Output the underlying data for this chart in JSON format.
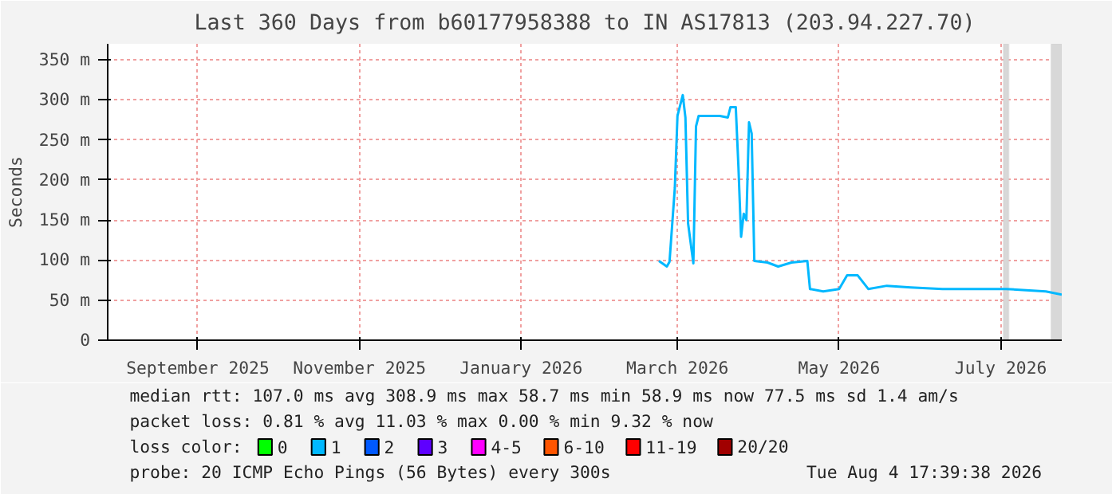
{
  "chart_data": {
    "type": "line",
    "title": "Last 360 Days from b60177958388 to IN AS17813 (203.94.227.70)",
    "ylabel": "Seconds",
    "x": [
      "2026-03-05",
      "2026-03-08",
      "2026-03-09",
      "2026-03-11",
      "2026-03-12",
      "2026-03-14",
      "2026-03-15",
      "2026-03-16",
      "2026-03-18",
      "2026-03-19",
      "2026-03-20",
      "2026-03-28",
      "2026-03-31",
      "2026-04-01",
      "2026-04-03",
      "2026-04-04",
      "2026-04-05",
      "2026-04-06",
      "2026-04-07",
      "2026-04-08",
      "2026-04-09",
      "2026-04-10",
      "2026-04-15",
      "2026-04-19",
      "2026-04-24",
      "2026-04-30",
      "2026-05-01",
      "2026-05-06",
      "2026-05-12",
      "2026-05-15",
      "2026-05-19",
      "2026-05-23",
      "2026-05-30",
      "2026-06-08",
      "2026-06-20",
      "2026-06-26",
      "2026-07-14",
      "2026-07-29",
      "2026-08-04"
    ],
    "series": [
      {
        "name": "0",
        "color": "#00ff00",
        "values": [
          null,
          null,
          null,
          null,
          null,
          null,
          null,
          null,
          null,
          null,
          null,
          null,
          null,
          null,
          null,
          null,
          null,
          null,
          null,
          null,
          null,
          null,
          null,
          null,
          null,
          null,
          null,
          null,
          null,
          null,
          null,
          null,
          null,
          null,
          null,
          null,
          null,
          null,
          null
        ]
      },
      {
        "name": "1",
        "color": "#00b8ff",
        "values": [
          99,
          92,
          98,
          190,
          280,
          306,
          278,
          146,
          96,
          267,
          280,
          280,
          278,
          291,
          291,
          217,
          129,
          158,
          150,
          272,
          258,
          99,
          97,
          92,
          97,
          99,
          64,
          61,
          64,
          81,
          81,
          64,
          68,
          66,
          64,
          64,
          64,
          61,
          57
        ]
      },
      {
        "name": "2",
        "color": "#0059ff",
        "values": [
          null,
          null,
          null,
          null,
          null,
          null,
          null,
          null,
          null,
          null,
          null,
          null,
          null,
          null,
          null,
          null,
          null,
          null,
          null,
          null,
          null,
          null,
          null,
          null,
          null,
          null,
          null,
          null,
          null,
          null,
          null,
          null,
          null,
          null,
          null,
          null,
          null,
          null,
          null
        ]
      },
      {
        "name": "3",
        "color": "#5e00ff",
        "values": [
          null,
          null,
          null,
          null,
          null,
          null,
          null,
          null,
          null,
          null,
          null,
          null,
          null,
          null,
          null,
          null,
          null,
          null,
          null,
          null,
          null,
          null,
          null,
          null,
          null,
          null,
          null,
          null,
          null,
          null,
          null,
          null,
          null,
          null,
          null,
          null,
          null,
          null,
          null
        ]
      },
      {
        "name": "4-5",
        "color": "#ff00ff",
        "values": [
          null,
          null,
          null,
          null,
          null,
          null,
          null,
          null,
          null,
          null,
          null,
          null,
          null,
          null,
          null,
          null,
          null,
          null,
          null,
          null,
          null,
          null,
          null,
          null,
          null,
          null,
          null,
          null,
          null,
          null,
          null,
          null,
          null,
          null,
          null,
          null,
          null,
          null,
          null
        ]
      },
      {
        "name": "6-10",
        "color": "#ff5500",
        "values": [
          null,
          null,
          null,
          null,
          null,
          null,
          null,
          null,
          null,
          null,
          null,
          null,
          null,
          null,
          null,
          null,
          null,
          null,
          null,
          null,
          null,
          null,
          null,
          null,
          null,
          null,
          null,
          null,
          null,
          null,
          null,
          null,
          null,
          null,
          null,
          null,
          null,
          null,
          null
        ]
      },
      {
        "name": "11-19",
        "color": "#ff0000",
        "values": [
          null,
          null,
          null,
          null,
          null,
          null,
          null,
          null,
          null,
          null,
          null,
          null,
          null,
          null,
          null,
          null,
          null,
          null,
          null,
          null,
          null,
          null,
          null,
          null,
          null,
          null,
          null,
          null,
          null,
          null,
          null,
          null,
          null,
          null,
          null,
          null,
          null,
          null,
          null
        ]
      },
      {
        "name": "20/20",
        "color": "#a10000",
        "values": [
          null,
          null,
          null,
          null,
          null,
          null,
          null,
          null,
          null,
          null,
          null,
          null,
          null,
          null,
          null,
          null,
          null,
          null,
          null,
          null,
          null,
          null,
          null,
          null,
          null,
          null,
          null,
          null,
          null,
          null,
          null,
          null,
          null,
          null,
          null,
          null,
          null,
          null,
          null
        ]
      }
    ],
    "legend_title": "loss color:",
    "legend": "bottom",
    "xlim": [
      "2025-08-09",
      "2026-08-04"
    ],
    "xticks": [
      {
        "value": "2025-09-12",
        "label": "September 2025"
      },
      {
        "value": "2025-11-12",
        "label": "November 2025"
      },
      {
        "value": "2026-01-12",
        "label": "January 2026"
      },
      {
        "value": "2026-03-12",
        "label": "March 2026"
      },
      {
        "value": "2026-05-12",
        "label": "May 2026"
      },
      {
        "value": "2026-07-12",
        "label": "July 2026"
      }
    ],
    "ylim": [
      0,
      370
    ],
    "yticks": [
      {
        "value": 0,
        "label": "0"
      },
      {
        "value": 50,
        "label": "50 m"
      },
      {
        "value": 100,
        "label": "100 m"
      },
      {
        "value": 150,
        "label": "150 m"
      },
      {
        "value": 200,
        "label": "200 m"
      },
      {
        "value": 250,
        "label": "250 m"
      },
      {
        "value": 300,
        "label": "300 m"
      },
      {
        "value": 350,
        "label": "350 m"
      }
    ],
    "grid": true,
    "bands": [
      {
        "axis": "x",
        "from": "2026-07-13",
        "to": "2026-07-15",
        "color": "#d8d8d8"
      },
      {
        "axis": "x",
        "from": "2026-07-31",
        "to": "2026-08-04",
        "color": "#d8d8d8"
      }
    ],
    "annotations": [
      "median rtt:  107.0 ms avg  308.9 ms max  58.7 ms min  58.9 ms now  77.5 ms sd  1.4   am/s",
      "packet loss: 0.81 % avg  11.03 % max  0.00 % min  9.32 % now",
      "probe:       20 ICMP Echo Pings (56 Bytes) every 300s",
      "Tue Aug  4 17:39:38 2026"
    ]
  }
}
